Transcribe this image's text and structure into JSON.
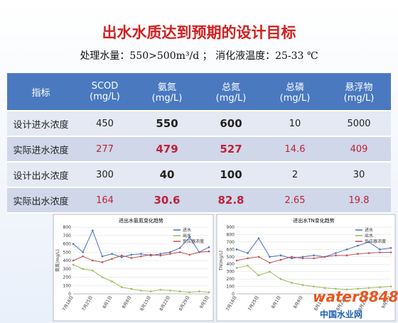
{
  "title": "出水水质达到预期的设计目标",
  "subtitle": "处理水量：550>500m³/d ； 消化液温度：25-33 ℃",
  "table": {
    "header": [
      {
        "name": "指标"
      },
      {
        "name": "SCOD",
        "unit": "(mg/L)"
      },
      {
        "name": "氨氮",
        "unit": "(mg/L)"
      },
      {
        "name": "总氮",
        "unit": "(mg/L)"
      },
      {
        "name": "总磷",
        "unit": "(mg/L)"
      },
      {
        "name": "悬浮物",
        "unit": "(mg/L)"
      }
    ],
    "bold_columns": [
      2,
      3
    ],
    "rows": [
      {
        "label": "设计进水浓度",
        "cells": [
          450,
          550,
          600,
          10,
          5000
        ],
        "color": "#222222"
      },
      {
        "label": "实际进水浓度",
        "cells": [
          277,
          479,
          527,
          14.6,
          409
        ],
        "color": "#c0203a"
      },
      {
        "label": "设计出水浓度",
        "cells": [
          300,
          40,
          100,
          2,
          30
        ],
        "color": "#222222"
      },
      {
        "label": "实际出水浓度",
        "cells": [
          164,
          30.6,
          82.8,
          2.65,
          19.8
        ],
        "color": "#c0203a"
      }
    ]
  },
  "chart_data": [
    {
      "type": "line",
      "title": "进出水氨氮变化趋势",
      "y_label": "氨氮(mg/L)",
      "categories": [
        "7月18日",
        null,
        "7月25日",
        null,
        "8月1日",
        null,
        "8月8日",
        null,
        "8月15日",
        null,
        "8月22日",
        null,
        "8月29日",
        null,
        "9月5日"
      ],
      "ylim": [
        0,
        800
      ],
      "yticks": [
        0,
        100,
        200,
        300,
        400,
        500,
        600,
        700,
        800
      ],
      "grid": true,
      "series": [
        {
          "name": "进水",
          "color": "#4a6fc8",
          "values": [
            600,
            500,
            760,
            450,
            480,
            440,
            470,
            480,
            460,
            480,
            500,
            550,
            680,
            500,
            560
          ]
        },
        {
          "name": "出水",
          "color": "#9bbb59",
          "values": [
            350,
            300,
            280,
            200,
            150,
            80,
            60,
            40,
            30,
            50,
            40,
            30,
            20,
            30,
            20
          ]
        },
        {
          "name": "反应器浓度",
          "color": "#c0504d",
          "values": [
            400,
            450,
            400,
            380,
            420,
            460,
            430,
            450,
            470,
            460,
            480,
            500,
            470,
            500,
            510
          ]
        }
      ]
    },
    {
      "type": "line",
      "title": "进出水TN变化趋势",
      "y_label": "TN(mg/L)",
      "categories": [
        "7月18日",
        null,
        "7月25日",
        null,
        "8月1日",
        null,
        "8月8日",
        null,
        "8月15日",
        null,
        "8月22日",
        null,
        "8月29日",
        null,
        "9月5日"
      ],
      "ylim": [
        0,
        900
      ],
      "yticks": [
        0,
        100,
        200,
        300,
        400,
        500,
        600,
        700,
        800,
        900
      ],
      "grid": true,
      "series": [
        {
          "name": "进水",
          "color": "#4a6fc8",
          "values": [
            600,
            550,
            750,
            500,
            520,
            480,
            500,
            520,
            500,
            550,
            600,
            650,
            700,
            600,
            620
          ]
        },
        {
          "name": "出水",
          "color": "#9bbb59",
          "values": [
            350,
            380,
            250,
            300,
            200,
            150,
            120,
            100,
            80,
            70,
            60,
            70,
            80,
            90,
            100
          ]
        },
        {
          "name": "反应器浓度",
          "color": "#c0504d",
          "values": [
            450,
            480,
            500,
            420,
            460,
            500,
            480,
            480,
            500,
            520,
            520,
            540,
            550,
            560,
            560
          ]
        }
      ]
    }
  ],
  "watermark": {
    "brand": "water8848",
    "site": "中国水业网"
  }
}
